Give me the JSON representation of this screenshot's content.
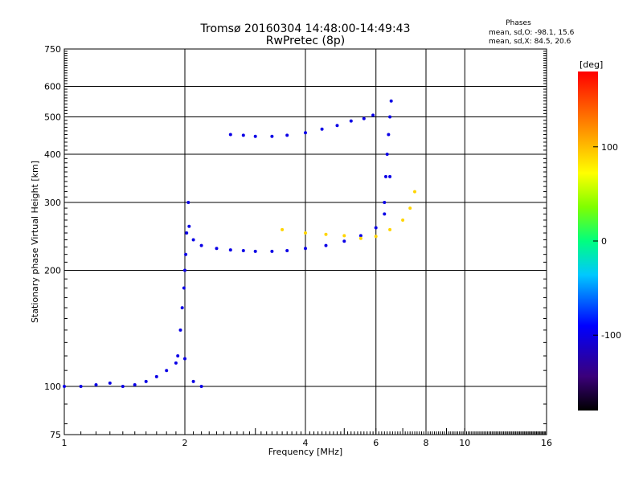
{
  "title_line1": "Tromsø 20160304 14:48:00-14:49:43",
  "title_line2": "RwPretec (8p)",
  "phases_box": {
    "heading": "Phases",
    "line1": "mean, sd,O: -98.1, 15.6",
    "line2": "mean, sd,X:  84.5, 20.6"
  },
  "chart_data": {
    "type": "scatter",
    "xlabel": "Frequency [MHz]",
    "ylabel": "Stationary phase Virtual Height [km]",
    "x_scale": "log",
    "y_scale": "log",
    "xlim": [
      1,
      16
    ],
    "ylim": [
      75,
      750
    ],
    "x_ticks": [
      1,
      2,
      4,
      6,
      8,
      10,
      16
    ],
    "x_tick_labels": [
      "1",
      "2",
      "4",
      "6",
      "8",
      "10",
      "16"
    ],
    "y_ticks": [
      75,
      100,
      200,
      300,
      400,
      500,
      600,
      750
    ],
    "y_tick_labels": [
      "75",
      "100",
      "200",
      "300",
      "400",
      "500",
      "600",
      "750"
    ],
    "grid": true,
    "colorbar": {
      "label": "[deg]",
      "range": [
        -180,
        180
      ],
      "ticks": [
        100,
        0,
        -100
      ],
      "tick_labels": [
        "100",
        "0",
        "-100"
      ]
    },
    "traces": [
      {
        "segment": "low E-region near 100 km",
        "x": [
          1.0,
          1.1,
          1.2,
          1.3,
          1.4,
          1.5,
          1.6,
          1.7,
          1.8,
          1.9,
          2.0,
          2.1,
          2.2
        ],
        "y": [
          100,
          100,
          101,
          102,
          100,
          101,
          103,
          106,
          110,
          115,
          118,
          103,
          100
        ],
        "phase_deg": -100
      },
      {
        "segment": "steep rise near 2 MHz",
        "x": [
          1.92,
          1.95,
          1.97,
          1.99,
          2.0,
          2.01,
          2.02,
          2.04
        ],
        "y": [
          120,
          140,
          160,
          180,
          200,
          220,
          250,
          300
        ],
        "phase_deg": -100
      },
      {
        "segment": "F1 cusp branch",
        "x": [
          2.05,
          2.1,
          2.2,
          2.4,
          2.6,
          2.8,
          3.0,
          3.3,
          3.6,
          4.0,
          4.5,
          5.0,
          5.5,
          6.0,
          6.3,
          6.5
        ],
        "y": [
          260,
          240,
          232,
          228,
          226,
          225,
          224,
          224,
          225,
          228,
          232,
          238,
          246,
          258,
          280,
          350
        ],
        "phase_deg": -100
      },
      {
        "segment": "X-mode branch",
        "x": [
          3.5,
          4.0,
          4.5,
          5.0,
          5.5,
          6.0,
          6.5,
          7.0,
          7.3,
          7.5
        ],
        "y": [
          255,
          250,
          248,
          246,
          242,
          245,
          255,
          270,
          290,
          320
        ],
        "phase_deg": 90
      },
      {
        "segment": "F2 branch",
        "x": [
          2.6,
          2.8,
          3.0,
          3.3,
          3.6,
          4.0,
          4.4,
          4.8,
          5.2,
          5.6,
          5.9
        ],
        "y": [
          450,
          448,
          445,
          445,
          448,
          455,
          465,
          475,
          488,
          495,
          505
        ],
        "phase_deg": -100
      },
      {
        "segment": "vertical trace near 6.5 MHz",
        "x": [
          6.3,
          6.35,
          6.4,
          6.45,
          6.5,
          6.55
        ],
        "y": [
          300,
          350,
          400,
          450,
          500,
          550
        ],
        "phase_deg": -100
      }
    ]
  }
}
